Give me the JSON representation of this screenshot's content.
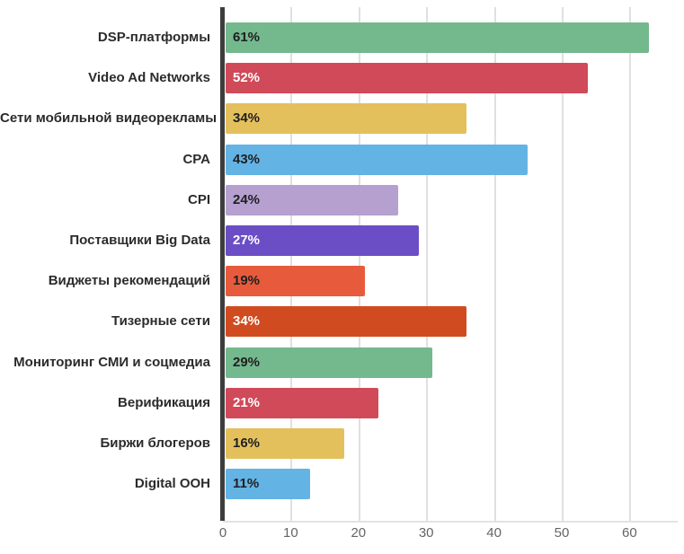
{
  "chart_data": {
    "type": "bar",
    "orientation": "horizontal",
    "title": "",
    "xlabel": "",
    "ylabel": "",
    "grid": true,
    "legend": false,
    "xlim": [
      0,
      67
    ],
    "x_ticks": [
      "0",
      "10",
      "20",
      "30",
      "40",
      "50",
      "60"
    ],
    "x_tick_values": [
      0,
      10,
      20,
      30,
      40,
      50,
      60
    ],
    "axis_color": "#3d3d3d",
    "grid_color": "#e0e0e0",
    "categories": [
      "DSP-платформы",
      "Video Ad Networks",
      "Сети мобильной видеорекламы",
      "CPA",
      "CPI",
      "Поставщики Big Data",
      "Виджеты рекомендаций",
      "Тизерные сети",
      "Мониторинг СМИ и соцмедиа",
      "Верификация",
      "Биржи блогеров",
      "Digital OOH"
    ],
    "values": [
      61,
      52,
      34,
      43,
      24,
      27,
      19,
      34,
      29,
      21,
      16,
      11
    ],
    "bars": [
      {
        "category": "DSP-платформы",
        "value": 61,
        "label": "61%",
        "color": "#74b98e",
        "label_color": "#1f1f1f"
      },
      {
        "category": "Video Ad Networks",
        "value": 52,
        "label": "52%",
        "color": "#d04a59",
        "label_color": "#ffffff"
      },
      {
        "category": "Сети мобильной видеорекламы",
        "value": 34,
        "label": "34%",
        "color": "#e4c05d",
        "label_color": "#1f1f1f"
      },
      {
        "category": "CPA",
        "value": 43,
        "label": "43%",
        "color": "#63b3e4",
        "label_color": "#1f1f1f"
      },
      {
        "category": "CPI",
        "value": 24,
        "label": "24%",
        "color": "#b5a0d0",
        "label_color": "#1f1f1f"
      },
      {
        "category": "Поставщики Big Data",
        "value": 27,
        "label": "27%",
        "color": "#6b4ec6",
        "label_color": "#ffffff"
      },
      {
        "category": "Виджеты рекомендаций",
        "value": 19,
        "label": "19%",
        "color": "#e75b3c",
        "label_color": "#1f1f1f"
      },
      {
        "category": "Тизерные сети",
        "value": 34,
        "label": "34%",
        "color": "#d14b20",
        "label_color": "#ffffff"
      },
      {
        "category": "Мониторинг СМИ и соцмедиа",
        "value": 29,
        "label": "29%",
        "color": "#74b98e",
        "label_color": "#1f1f1f"
      },
      {
        "category": "Верификация",
        "value": 21,
        "label": "21%",
        "color": "#d04a59",
        "label_color": "#ffffff"
      },
      {
        "category": "Биржи блогеров",
        "value": 16,
        "label": "16%",
        "color": "#e4c05d",
        "label_color": "#1f1f1f"
      },
      {
        "category": "Digital OOH",
        "value": 11,
        "label": "11%",
        "color": "#63b3e4",
        "label_color": "#1f1f1f"
      }
    ]
  }
}
